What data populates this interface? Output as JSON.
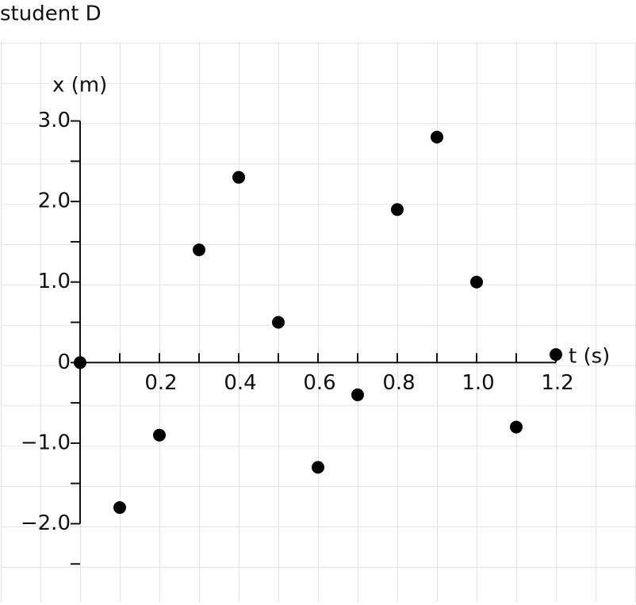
{
  "chart_data": {
    "type": "scatter",
    "title": "student D",
    "x_label": "t (s)",
    "y_label": "x (m)",
    "x": [
      0,
      0.1,
      0.2,
      0.3,
      0.4,
      0.5,
      0.6,
      0.7,
      0.8,
      0.9,
      1.0,
      1.1,
      1.2
    ],
    "values": [
      0,
      -1.8,
      -0.9,
      1.4,
      2.3,
      0.5,
      -1.3,
      -0.4,
      1.9,
      2.8,
      1.0,
      -0.8,
      0.1
    ],
    "color": "#000000",
    "xlim": [
      -0.2,
      1.4
    ],
    "ylim": [
      -2.97,
      3.98
    ],
    "xticks": [
      0.2,
      0.4,
      0.6,
      0.8,
      {
        "value": 1.0,
        "label": "1.0"
      },
      1.2
    ],
    "x_minor_ticks": [
      0.1,
      0.3,
      0.5,
      0.7,
      0.9,
      1.1
    ],
    "yticks": [
      {
        "value": -2,
        "label": "−2.0"
      },
      {
        "value": -1,
        "label": "−1.0"
      },
      0,
      {
        "value": 1,
        "label": "1.0"
      },
      {
        "value": 2,
        "label": "2.0"
      },
      {
        "value": 3,
        "label": "3.0"
      }
    ],
    "y_minor_ticks": [
      -2.5,
      -1.5,
      -0.5,
      0.5,
      1.5,
      2.5
    ],
    "grid": true
  }
}
